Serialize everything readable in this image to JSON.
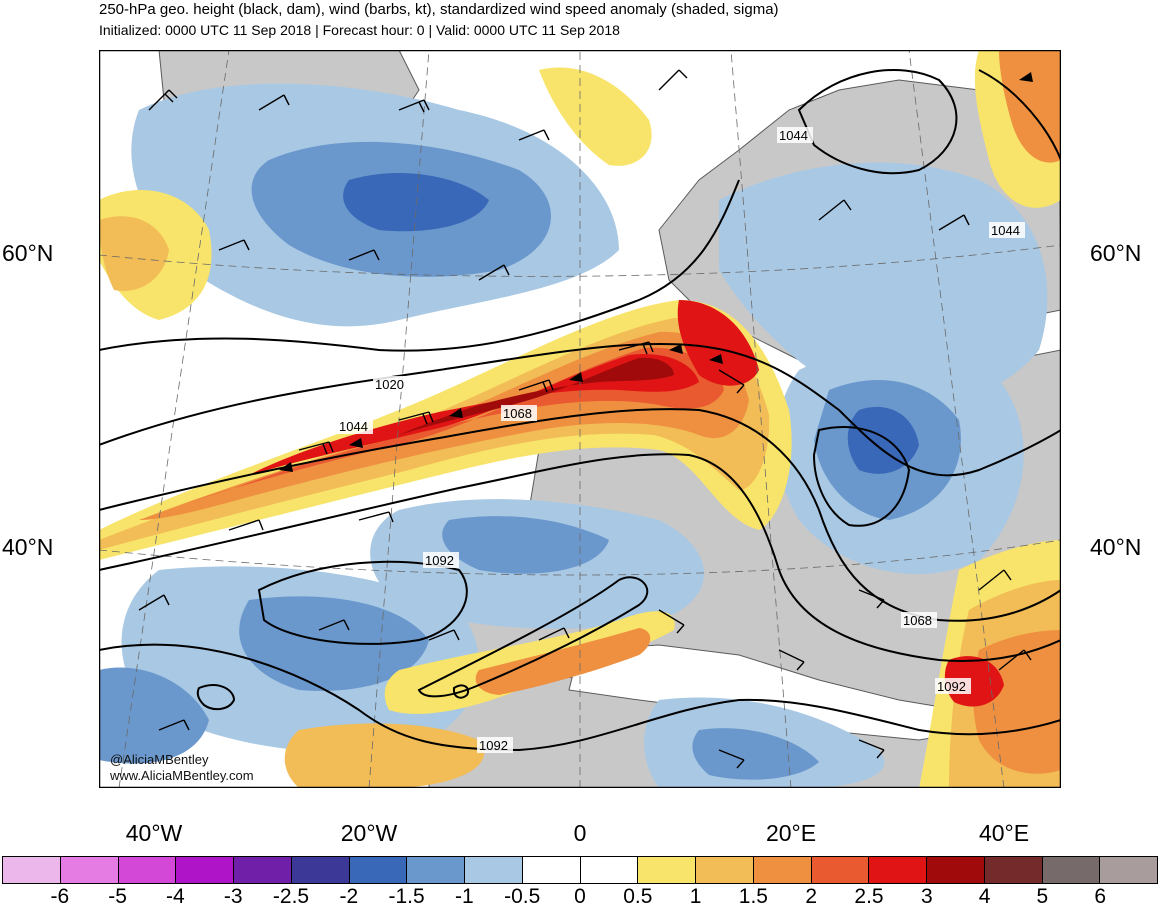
{
  "header": {
    "title": "250-hPa geo. height (black, dam), wind (barbs, kt), standardized wind speed anomaly (shaded, sigma)",
    "subtitle": "Initialized: 0000 UTC 11 Sep 2018 | Forecast hour: 0 | Valid: 0000 UTC 11 Sep 2018"
  },
  "axes": {
    "lat_labels": [
      "60°N",
      "40°N"
    ],
    "lon_labels": [
      "40°W",
      "20°W",
      "0",
      "20°E",
      "40°E"
    ]
  },
  "contour_labels": [
    "1044",
    "1044",
    "1020",
    "1044",
    "1068",
    "1092",
    "1068",
    "1092",
    "1092"
  ],
  "credits": [
    "@AliciaMBentley",
    "www.AliciaMBentley.com"
  ],
  "colorbar": {
    "labels": [
      "-6",
      "-5",
      "-4",
      "-3",
      "-2.5",
      "-2",
      "-1.5",
      "-1",
      "-0.5",
      "0",
      "0.5",
      "1",
      "1.5",
      "2",
      "2.5",
      "3",
      "4",
      "5",
      "6"
    ],
    "colors": [
      "#ecb8ec",
      "#e47ce4",
      "#d448d8",
      "#b014c8",
      "#7020a8",
      "#3c3898",
      "#3a68b8",
      "#6a98cc",
      "#a8c8e4",
      "#ffffff",
      "#ffffff",
      "#f8e46a",
      "#f2bc56",
      "#ee9040",
      "#ea5a30",
      "#e01414",
      "#a00a0a",
      "#742a2a",
      "#766a6a",
      "#a89c9c"
    ]
  },
  "colors": {
    "land": "#c8c8c8",
    "ocean": "#ffffff",
    "coast": "#5a5a5a",
    "contour": "#000000"
  }
}
